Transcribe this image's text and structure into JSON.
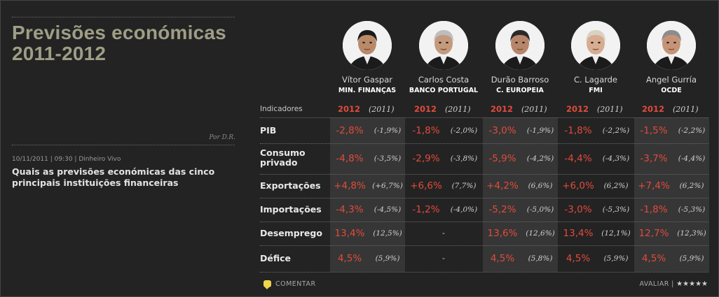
{
  "title": "Previsões económicas 2011-2012",
  "byline": "Por D.R.",
  "meta": "10/11/2011 | 09:30 | Dinheiro Vivo",
  "headline": "Quais as previsões económicas das cinco principais instituições financeiras",
  "table": {
    "indicator_header": "Indicadores",
    "year_current": "2012",
    "year_prev": "(2011)",
    "people": [
      {
        "name": "Vítor Gaspar",
        "institution": "MIN. FINANÇAS"
      },
      {
        "name": "Carlos Costa",
        "institution": "BANCO PORTUGAL"
      },
      {
        "name": "Durão Barroso",
        "institution": "C. EUROPEIA"
      },
      {
        "name": "C. Lagarde",
        "institution": "FMI"
      },
      {
        "name": "Angel Gurría",
        "institution": "OCDE"
      }
    ],
    "rows": [
      {
        "label": "PIB",
        "cells": [
          {
            "v2012": "-2,8%",
            "v2011": "(-1,9%)"
          },
          {
            "v2012": "-1,8%",
            "v2011": "(-2,0%)"
          },
          {
            "v2012": "-3,0%",
            "v2011": "(-1,9%)"
          },
          {
            "v2012": "-1,8%",
            "v2011": "(-2,2%)"
          },
          {
            "v2012": "-1,5%",
            "v2011": "(-2,2%)"
          }
        ]
      },
      {
        "label": "Consumo privado",
        "cells": [
          {
            "v2012": "-4,8%",
            "v2011": "(-3,5%)"
          },
          {
            "v2012": "-2,9%",
            "v2011": "(-3,8%)"
          },
          {
            "v2012": "-5,9%",
            "v2011": "(-4,2%)"
          },
          {
            "v2012": "-4,4%",
            "v2011": "(-4,3%)"
          },
          {
            "v2012": "-3,7%",
            "v2011": "(-4,4%)"
          }
        ]
      },
      {
        "label": "Exportações",
        "cells": [
          {
            "v2012": "+4,8%",
            "v2011": "(+6,7%)"
          },
          {
            "v2012": "+6,6%",
            "v2011": "(7,7%)"
          },
          {
            "v2012": "+4,2%",
            "v2011": "(6,6%)"
          },
          {
            "v2012": "+6,0%",
            "v2011": "(6,2%)"
          },
          {
            "v2012": "+7,4%",
            "v2011": "(6,2%)"
          }
        ]
      },
      {
        "label": "Importações",
        "cells": [
          {
            "v2012": "-4,3%",
            "v2011": "(-4,5%)"
          },
          {
            "v2012": "-1,2%",
            "v2011": "(-4,0%)"
          },
          {
            "v2012": "-5,2%",
            "v2011": "(-5,0%)"
          },
          {
            "v2012": "-3,0%",
            "v2011": "(-5,3%)"
          },
          {
            "v2012": "-1,8%",
            "v2011": "(-5,3%)"
          }
        ]
      },
      {
        "label": "Desemprego",
        "cells": [
          {
            "v2012": "13,4%",
            "v2011": "(12,5%)"
          },
          {
            "dash": "-"
          },
          {
            "v2012": "13,6%",
            "v2011": "(12,6%)"
          },
          {
            "v2012": "13,4%",
            "v2011": "(12,1%)"
          },
          {
            "v2012": "12,7%",
            "v2011": "(12,3%)"
          }
        ]
      },
      {
        "label": "Défice",
        "cells": [
          {
            "v2012": "4,5%",
            "v2011": "(5,9%)"
          },
          {
            "dash": "-"
          },
          {
            "v2012": "4,5%",
            "v2011": "(5,8%)"
          },
          {
            "v2012": "4,5%",
            "v2011": "(5,9%)"
          },
          {
            "v2012": "4,5%",
            "v2011": "(5,9%)"
          }
        ]
      }
    ]
  },
  "footer": {
    "comment_label": "COMENTAR",
    "rate_label": "AVALIAR |",
    "stars": "★★★★★"
  }
}
